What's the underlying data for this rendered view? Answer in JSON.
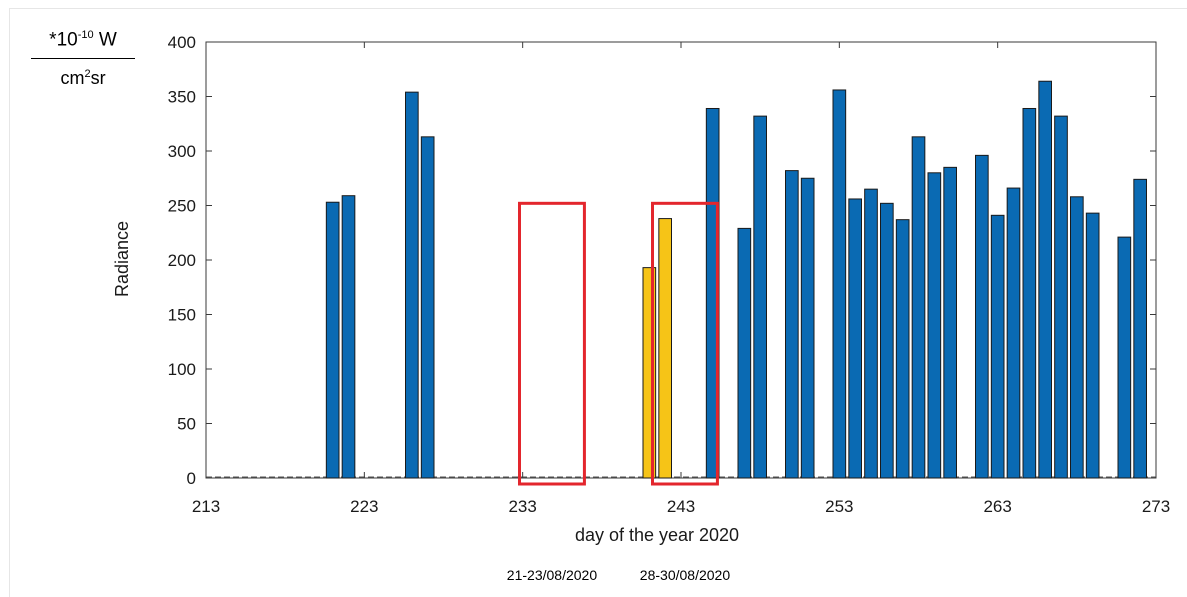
{
  "chart_data": {
    "type": "bar",
    "title": "",
    "xlabel": "day of the year 2020",
    "ylabel": "Radiance",
    "unit_label": {
      "numerator_prefix": "*10",
      "numerator_exponent": "-10",
      "numerator_unit": "W",
      "denominator_base": "cm",
      "denominator_exponent": "2",
      "denominator_unit": "sr"
    },
    "xlim": [
      213,
      273
    ],
    "ylim": [
      0,
      400
    ],
    "xticks": [
      213,
      223,
      233,
      243,
      253,
      263,
      273
    ],
    "yticks": [
      0,
      50,
      100,
      150,
      200,
      250,
      300,
      350,
      400
    ],
    "grid": false,
    "colors": {
      "default": "#0a6ab3",
      "highlight": "#f6c417",
      "box": "#e3262d"
    },
    "series": [
      {
        "x": [
          221,
          222,
          226,
          227,
          241,
          242,
          245,
          247,
          248,
          250,
          251,
          253,
          254,
          255,
          256,
          257,
          258,
          259,
          260,
          262,
          263,
          264,
          265,
          266,
          267,
          268,
          269,
          271,
          272
        ],
        "values": [
          253,
          259,
          354,
          313,
          193,
          238,
          339,
          229,
          332,
          282,
          275,
          356,
          256,
          265,
          252,
          237,
          313,
          280,
          285,
          296,
          241,
          266,
          339,
          364,
          332,
          258,
          243,
          221,
          274
        ],
        "highlight": [
          false,
          false,
          false,
          false,
          true,
          true,
          false,
          false,
          false,
          false,
          false,
          false,
          false,
          false,
          false,
          false,
          false,
          false,
          false,
          false,
          false,
          false,
          false,
          false,
          false,
          false,
          false,
          false,
          false
        ]
      }
    ],
    "highlight_boxes": [
      {
        "x_start": 232.8,
        "x_end": 236.9,
        "y_top": 252,
        "label": "21-23/08/2020"
      },
      {
        "x_start": 241.2,
        "x_end": 245.3,
        "y_top": 252,
        "label": "28-30/08/2020"
      }
    ]
  }
}
